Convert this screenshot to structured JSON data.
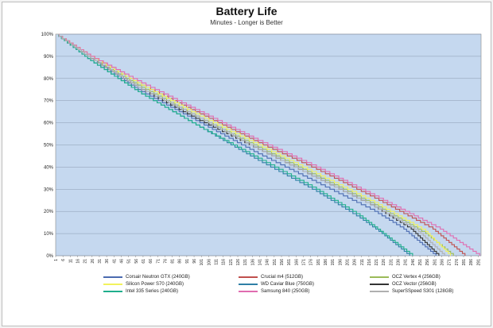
{
  "chart_data": {
    "type": "line",
    "title": "Battery Life",
    "subtitle": "Minutes - Longer is Better",
    "xlabel": "",
    "ylabel": "",
    "xlim": [
      1,
      293
    ],
    "ylim": [
      0,
      100
    ],
    "y_ticks": [
      "0%",
      "10%",
      "20%",
      "30%",
      "40%",
      "50%",
      "60%",
      "70%",
      "80%",
      "90%",
      "100%"
    ],
    "x_ticks": [
      "1",
      "6",
      "11",
      "16",
      "21",
      "26",
      "31",
      "36",
      "41",
      "46",
      "51",
      "56",
      "61",
      "66",
      "71",
      "76",
      "81",
      "86",
      "91",
      "96",
      "101",
      "106",
      "111",
      "116",
      "121",
      "126",
      "131",
      "136",
      "141",
      "146",
      "151",
      "156",
      "161",
      "166",
      "171",
      "176",
      "181",
      "186",
      "191",
      "196",
      "201",
      "206",
      "211",
      "216",
      "221",
      "226",
      "231",
      "236",
      "241",
      "246",
      "251",
      "256",
      "261",
      "266",
      "271",
      "276",
      "281",
      "286",
      "291"
    ],
    "grid": true,
    "background_color": "#c5d8ef",
    "legend_position": "bottom",
    "series": [
      {
        "name": "Corsair Neutron GTX (240GB)",
        "color": "#4b6bb0",
        "x": [
          1,
          25,
          60,
          100,
          140,
          180,
          220,
          240,
          262
        ],
        "y": [
          100,
          89,
          74,
          60,
          46,
          33,
          20,
          12,
          0
        ]
      },
      {
        "name": "Crucial m4 (512GB)",
        "color": "#c0504d",
        "x": [
          1,
          25,
          60,
          100,
          140,
          180,
          220,
          260,
          282
        ],
        "y": [
          100,
          90,
          77,
          64,
          51,
          39,
          26,
          12,
          0
        ]
      },
      {
        "name": "OCZ Vertex 4 (256GB)",
        "color": "#9bbb59",
        "x": [
          1,
          25,
          60,
          100,
          140,
          180,
          220,
          255,
          274
        ],
        "y": [
          100,
          89,
          76,
          62,
          49,
          36,
          23,
          10,
          0
        ]
      },
      {
        "name": "Silicon Power S70 (240GB)",
        "color": "#f2f25c",
        "x": [
          1,
          25,
          60,
          100,
          140,
          180,
          220,
          255,
          272
        ],
        "y": [
          100,
          90,
          77,
          63,
          50,
          37,
          24,
          11,
          0
        ]
      },
      {
        "name": "WD Caviar Blue (750GB)",
        "color": "#2f7fa6",
        "x": [
          1,
          25,
          60,
          100,
          140,
          180,
          210,
          225,
          244
        ],
        "y": [
          100,
          88,
          73,
          58,
          43,
          29,
          17,
          10,
          0
        ]
      },
      {
        "name": "OCZ Vector (256GB)",
        "color": "#333333",
        "x": [
          1,
          25,
          60,
          100,
          140,
          180,
          220,
          245,
          264
        ],
        "y": [
          100,
          89,
          75,
          61,
          48,
          35,
          22,
          12,
          0
        ]
      },
      {
        "name": "Intel 335 Series (240GB)",
        "color": "#1fae8c",
        "x": [
          1,
          25,
          60,
          100,
          140,
          180,
          210,
          228,
          246
        ],
        "y": [
          100,
          88,
          73,
          58,
          44,
          30,
          18,
          9,
          0
        ]
      },
      {
        "name": "Samsung 840 (250GB)",
        "color": "#e06cb0",
        "x": [
          1,
          25,
          60,
          100,
          140,
          180,
          220,
          265,
          292
        ],
        "y": [
          100,
          90,
          78,
          65,
          52,
          40,
          27,
          12,
          0
        ]
      },
      {
        "name": "SuperSSpeed S301 (128GB)",
        "color": "#b0b0b0",
        "x": [
          1,
          25,
          60,
          100,
          140,
          180,
          220,
          250,
          268
        ],
        "y": [
          100,
          89,
          75,
          62,
          48,
          35,
          22,
          11,
          0
        ]
      }
    ]
  }
}
